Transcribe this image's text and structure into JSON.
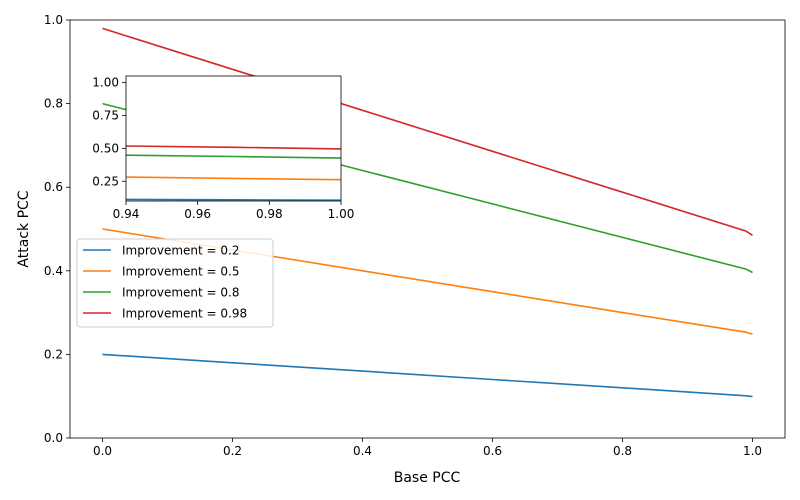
{
  "chart_data": {
    "type": "line",
    "xlabel": "Base PCC",
    "ylabel": "Attack PCC",
    "xlim": [
      -0.05,
      1.05
    ],
    "ylim": [
      0.0,
      1.0
    ],
    "xticks": [
      "0.0",
      "0.2",
      "0.4",
      "0.6",
      "0.8",
      "1.0"
    ],
    "yticks": [
      "0.0",
      "0.2",
      "0.4",
      "0.6",
      "0.8",
      "1.0"
    ],
    "grid": false,
    "legend_position": "center-left",
    "series": [
      {
        "name": "Improvement = 0.2",
        "color": "#1f77b4",
        "x": [
          0.0,
          0.2,
          0.4,
          0.6,
          0.8,
          0.99,
          1.0
        ],
        "y": [
          0.2,
          0.18,
          0.16,
          0.14,
          0.12,
          0.101,
          0.099
        ]
      },
      {
        "name": "Improvement = 0.5",
        "color": "#ff7f0e",
        "x": [
          0.0,
          0.2,
          0.4,
          0.6,
          0.8,
          0.99,
          1.0
        ],
        "y": [
          0.5,
          0.45,
          0.4,
          0.35,
          0.3,
          0.253,
          0.248
        ]
      },
      {
        "name": "Improvement = 0.8",
        "color": "#2ca02c",
        "x": [
          0.0,
          0.2,
          0.4,
          0.6,
          0.8,
          0.99,
          1.0
        ],
        "y": [
          0.8,
          0.72,
          0.64,
          0.56,
          0.48,
          0.404,
          0.396
        ]
      },
      {
        "name": "Improvement = 0.98",
        "color": "#d62728",
        "x": [
          0.0,
          0.2,
          0.4,
          0.6,
          0.8,
          0.99,
          1.0
        ],
        "y": [
          0.98,
          0.882,
          0.784,
          0.686,
          0.588,
          0.495,
          0.485
        ]
      }
    ],
    "inset": {
      "xlim": [
        0.94,
        1.0
      ],
      "ylim": [
        0.1,
        1.05
      ],
      "xticks": [
        "0.94",
        "0.96",
        "0.98",
        "1.00"
      ],
      "yticks": [
        "0.25",
        "0.50",
        "0.75",
        "1.00"
      ],
      "series": [
        {
          "color": "#1f77b4",
          "x": [
            0.94,
            0.97,
            1.0
          ],
          "y": [
            0.112,
            0.109,
            0.106
          ]
        },
        {
          "color": "#ff7f0e",
          "x": [
            0.94,
            0.97,
            1.0
          ],
          "y": [
            0.282,
            0.272,
            0.262
          ]
        },
        {
          "color": "#2ca02c",
          "x": [
            0.94,
            0.97,
            1.0
          ],
          "y": [
            0.448,
            0.438,
            0.426
          ]
        },
        {
          "color": "#d62728",
          "x": [
            0.94,
            0.97,
            1.0
          ],
          "y": [
            0.518,
            0.508,
            0.496
          ]
        }
      ]
    }
  }
}
